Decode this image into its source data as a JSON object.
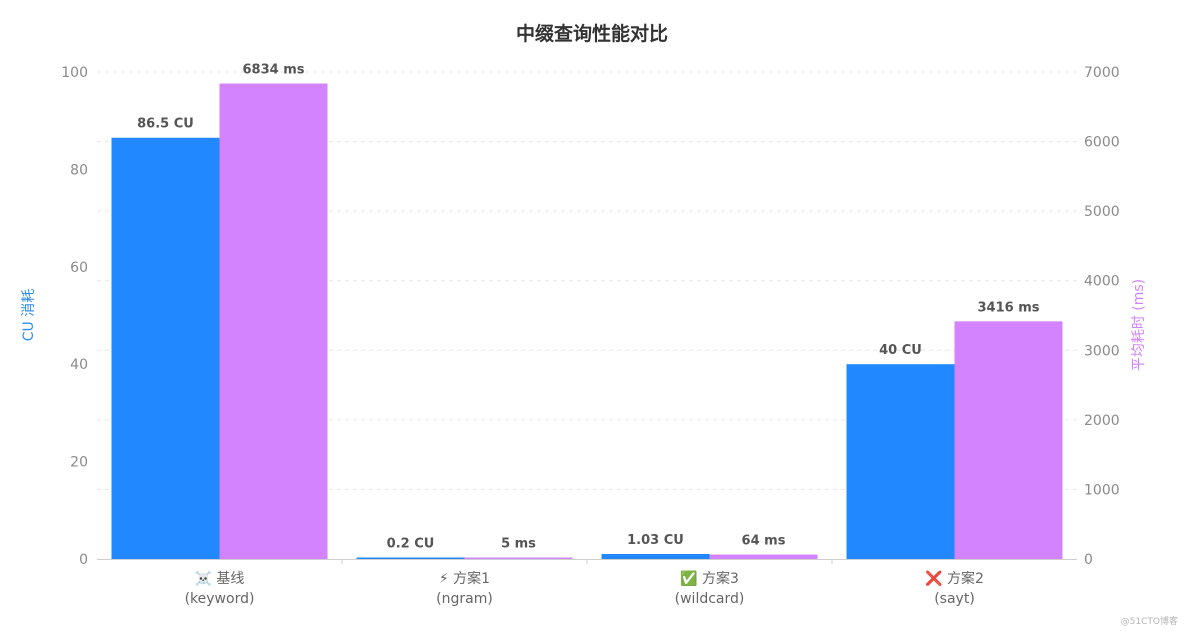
{
  "chart_data": {
    "type": "bar",
    "title": "中缀查询性能对比",
    "categories": [
      {
        "icon": "☠️",
        "name": "基线",
        "sub": "(keyword)"
      },
      {
        "icon": "⚡",
        "name": "方案1",
        "sub": "(ngram)"
      },
      {
        "icon": "✅",
        "name": "方案3",
        "sub": "(wildcard)"
      },
      {
        "icon": "❌",
        "name": "方案2",
        "sub": "(sayt)"
      }
    ],
    "series": [
      {
        "axis": "left",
        "color": "#2288ff",
        "values": [
          86.5,
          0.2,
          1.03,
          40
        ],
        "labels": [
          "86.5 CU",
          "0.2 CU",
          "1.03 CU",
          "40 CU"
        ]
      },
      {
        "axis": "right",
        "color": "#d483ff",
        "values": [
          6834,
          5,
          64,
          3416
        ],
        "labels": [
          "6834 ms",
          "5 ms",
          "64 ms",
          "3416 ms"
        ]
      }
    ],
    "ylabel_left": "CU 消耗",
    "ylabel_right": "平均耗时 (ms)",
    "ylim_left": [
      0,
      100
    ],
    "ylim_right": [
      0,
      7000
    ],
    "yticks_left": [
      "0",
      "20",
      "40",
      "60",
      "80",
      "100"
    ],
    "yticks_right": [
      "0",
      "1000",
      "2000",
      "3000",
      "4000",
      "5000",
      "6000",
      "7000"
    ],
    "grid": true
  },
  "watermark": "@51CTO博客"
}
